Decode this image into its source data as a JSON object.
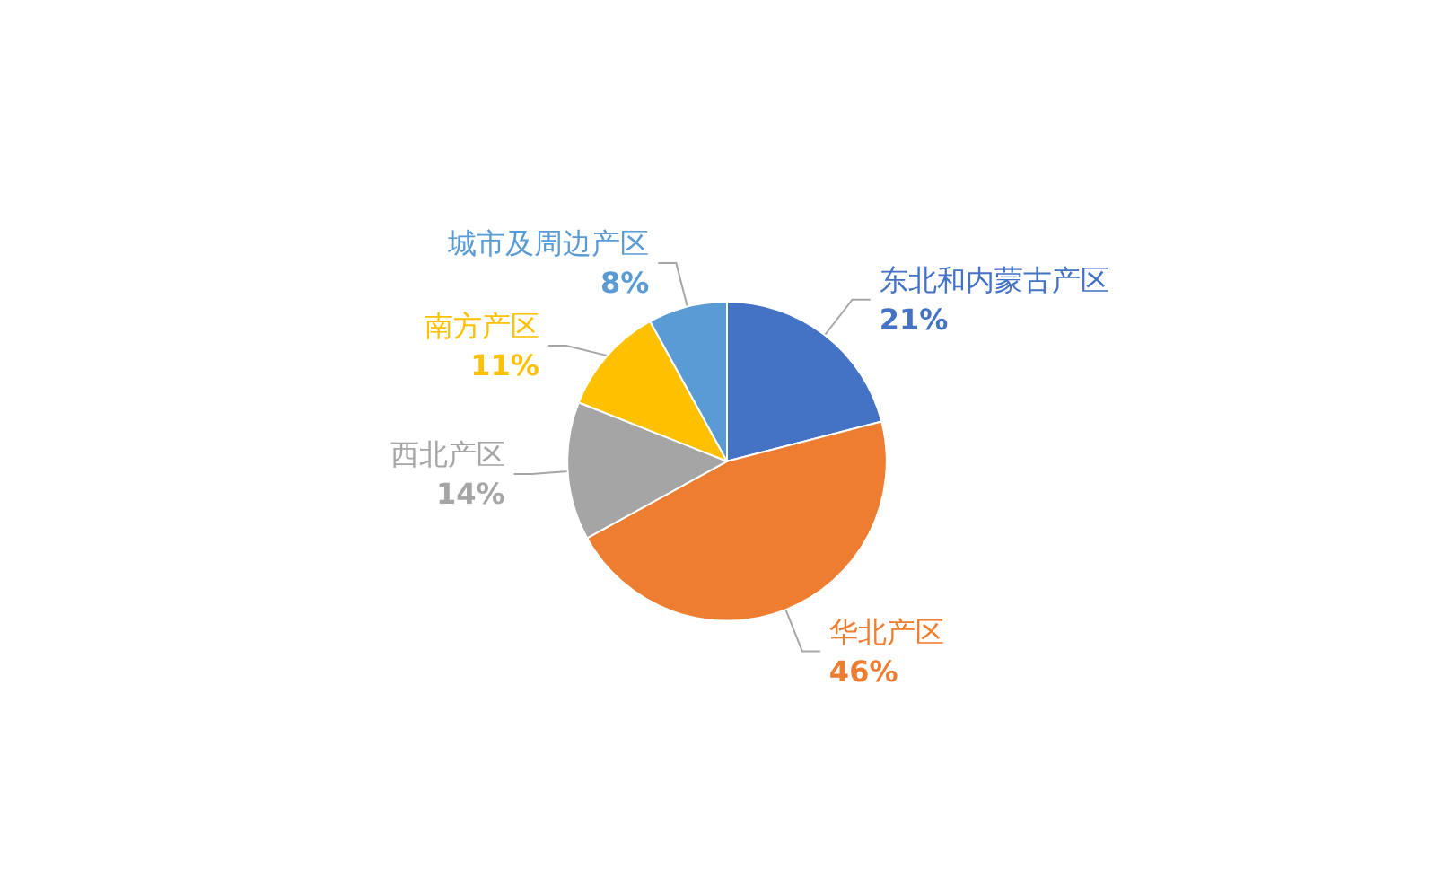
{
  "chart_data": {
    "type": "pie",
    "categories": [
      "东北和内蒙古产区",
      "华北产区",
      "西北产区",
      "南方产区",
      "城市及周边产区"
    ],
    "values": [
      21,
      46,
      14,
      11,
      8
    ],
    "colors": [
      "#4472c4",
      "#ed7d31",
      "#a5a5a5",
      "#ffc000",
      "#5b9bd5"
    ],
    "value_labels": [
      "21%",
      "46%",
      "14%",
      "11%",
      "8%"
    ],
    "legend": false
  }
}
